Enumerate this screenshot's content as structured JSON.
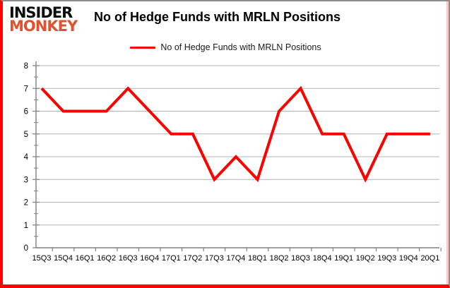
{
  "brand": {
    "line1": "INSIDER",
    "line2": "MONKEY",
    "accent_color": "#e0512f"
  },
  "header": {
    "title": "No of Hedge Funds with MRLN Positions"
  },
  "legend": {
    "label": "No of Hedge Funds with MRLN Positions",
    "swatch_color": "#fe0000"
  },
  "colors": {
    "series_line": "#fe0000",
    "gridline": "#b3b3b3",
    "axis": "#808080",
    "tick": "#808080",
    "frame_red": "#fe0000",
    "frame_gray": "#8c8c8c",
    "background": "#ffffff"
  },
  "chart_data": {
    "type": "line",
    "title": "No of Hedge Funds with MRLN Positions",
    "categories": [
      "15Q3",
      "15Q4",
      "16Q1",
      "16Q2",
      "16Q3",
      "16Q4",
      "17Q1",
      "17Q2",
      "17Q3",
      "17Q4",
      "18Q1",
      "18Q2",
      "18Q3",
      "18Q4",
      "19Q1",
      "19Q2",
      "19Q3",
      "19Q4",
      "20Q1"
    ],
    "series": [
      {
        "name": "No of Hedge Funds with MRLN Positions",
        "color": "#fe0000",
        "values": [
          7,
          6,
          6,
          6,
          7,
          6,
          5,
          5,
          3,
          4,
          3,
          6,
          7,
          5,
          5,
          3,
          5,
          5,
          5
        ]
      }
    ],
    "ylim": [
      0,
      8
    ],
    "ytick_step": 1,
    "yticks": [
      0,
      1,
      2,
      3,
      4,
      5,
      6,
      7,
      8
    ],
    "grid": true,
    "legend_position": "top-center"
  }
}
